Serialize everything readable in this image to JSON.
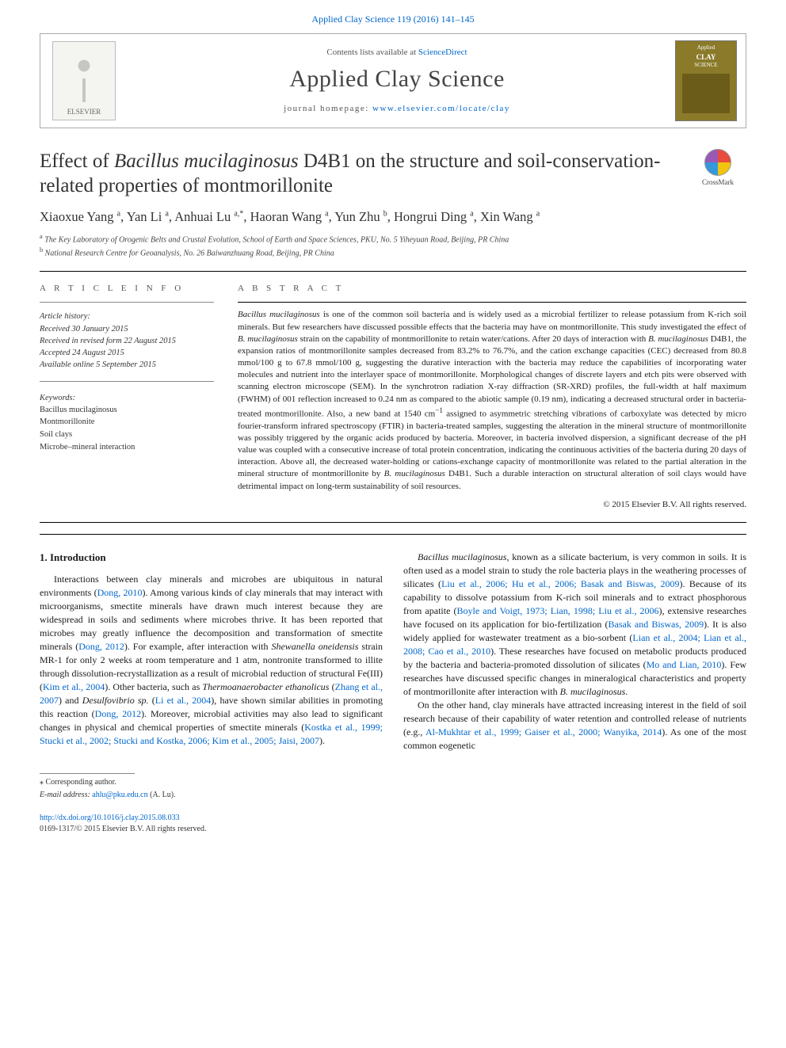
{
  "journal_ref": "Applied Clay Science 119 (2016) 141–145",
  "header": {
    "contents_prefix": "Contents lists available at ",
    "contents_link": "ScienceDirect",
    "journal_name": "Applied Clay Science",
    "homepage_prefix": "journal homepage: ",
    "homepage_url": "www.elsevier.com/locate/clay",
    "publisher_name": "ELSEVIER",
    "cover_label_1": "Applied",
    "cover_label_2": "CLAY",
    "cover_label_3": "SCIENCE"
  },
  "title": {
    "prefix": "Effect of ",
    "species": "Bacillus mucilaginosus",
    "suffix": " D4B1 on the structure and soil-conservation-related properties of montmorillonite"
  },
  "crossmark_label": "CrossMark",
  "authors": [
    {
      "name": "Xiaoxue Yang",
      "aff": "a"
    },
    {
      "name": "Yan Li",
      "aff": "a"
    },
    {
      "name": "Anhuai Lu",
      "aff": "a",
      "corr": true
    },
    {
      "name": "Haoran Wang",
      "aff": "a"
    },
    {
      "name": "Yun Zhu",
      "aff": "b"
    },
    {
      "name": "Hongrui Ding",
      "aff": "a"
    },
    {
      "name": "Xin Wang",
      "aff": "a"
    }
  ],
  "affiliations": {
    "a": "The Key Laboratory of Orogenic Belts and Crustal Evolution, School of Earth and Space Sciences, PKU, No. 5 Yiheyuan Road, Beijing, PR China",
    "b": "National Research Centre for Geoanalysis, No. 26 Baiwanzhuang Road, Beijing, PR China"
  },
  "info": {
    "heading": "A R T I C L E   I N F O",
    "history_label": "Article history:",
    "received": "Received 30 January 2015",
    "revised": "Received in revised form 22 August 2015",
    "accepted": "Accepted 24 August 2015",
    "online": "Available online 5 September 2015",
    "keywords_label": "Keywords:",
    "keywords": [
      "Bacillus mucilaginosus",
      "Montmorillonite",
      "Soil clays",
      "Microbe–mineral interaction"
    ]
  },
  "abstract": {
    "heading": "A B S T R A C T",
    "text_parts": [
      {
        "t": "Bacillus mucilaginosus",
        "i": true
      },
      {
        "t": " is one of the common soil bacteria and is widely used as a microbial fertilizer to release potassium from K-rich soil minerals. But few researchers have discussed possible effects that the bacteria may have on montmorillonite. This study investigated the effect of "
      },
      {
        "t": "B. mucilaginosus",
        "i": true
      },
      {
        "t": " strain on the capability of montmorillonite to retain water/cations. After 20 days of interaction with "
      },
      {
        "t": "B. mucilaginosus",
        "i": true
      },
      {
        "t": " D4B1, the expansion ratios of montmorillonite samples decreased from 83.2% to 76.7%, and the cation exchange capacities (CEC) decreased from 80.8 mmol/100 g to 67.8 mmol/100 g, suggesting the durative interaction with the bacteria may reduce the capabilities of incorporating water molecules and nutrient into the interlayer space of montmorillonite. Morphological changes of discrete layers and etch pits were observed with scanning electron microscope (SEM). In the synchrotron radiation X-ray diffraction (SR-XRD) profiles, the full-width at half maximum (FWHM) of 001 reflection increased to 0.24 nm as compared to the abiotic sample (0.19 nm), indicating a decreased structural order in bacteria-treated montmorillonite. Also, a new band at 1540 cm"
      },
      {
        "t": "−1",
        "sup": true
      },
      {
        "t": " assigned to asymmetric stretching vibrations of carboxylate was detected by micro fourier-transform infrared spectroscopy (FTIR) in bacteria-treated samples, suggesting the alteration in the mineral structure of montmorillonite was possibly triggered by the organic acids produced by bacteria. Moreover, in bacteria involved dispersion, a significant decrease of the pH value was coupled with a consecutive increase of total protein concentration, indicating the continuous activities of the bacteria during 20 days of interaction. Above all, the decreased water-holding or cations-exchange capacity of montmorillonite was related to the partial alteration in the mineral structure of montmorillonite by "
      },
      {
        "t": "B. mucilaginosus",
        "i": true
      },
      {
        "t": " D4B1. Such a durable interaction on structural alteration of soil clays would have detrimental impact on long-term sustainability of soil resources."
      }
    ],
    "copyright": "© 2015 Elsevier B.V. All rights reserved."
  },
  "section1": {
    "heading": "1. Introduction",
    "p1_parts": [
      {
        "t": "Interactions between clay minerals and microbes are ubiquitous in natural environments ("
      },
      {
        "t": "Dong, 2010",
        "c": true
      },
      {
        "t": "). Among various kinds of clay minerals that may interact with microorganisms, smectite minerals have drawn much interest because they are widespread in soils and sediments where microbes thrive. It has been reported that microbes may greatly influence the decomposition and transformation of smectite minerals ("
      },
      {
        "t": "Dong, 2012",
        "c": true
      },
      {
        "t": "). For example, after interaction with "
      },
      {
        "t": "Shewanella oneidensis",
        "i": true
      },
      {
        "t": " strain MR-1 for only 2 weeks at room temperature and 1 atm, nontronite transformed to illite through dissolution-recrystallization as a result of microbial reduction of structural Fe(III) ("
      },
      {
        "t": "Kim et al., 2004",
        "c": true
      },
      {
        "t": "). Other bacteria, such as "
      },
      {
        "t": "Thermoanaerobacter ethanolicus",
        "i": true
      },
      {
        "t": " ("
      },
      {
        "t": "Zhang et al., 2007",
        "c": true
      },
      {
        "t": ") and "
      },
      {
        "t": "Desulfovibrio sp.",
        "i": true
      },
      {
        "t": " ("
      },
      {
        "t": "Li et al., 2004",
        "c": true
      },
      {
        "t": "), have shown similar abilities in promoting this reaction ("
      },
      {
        "t": "Dong, 2012",
        "c": true
      },
      {
        "t": "). Moreover, microbial activities may also lead to significant changes in physical and chemical properties of smectite minerals ("
      },
      {
        "t": "Kostka et al., 1999; Stucki et al., 2002; Stucki and Kostka, 2006; Kim et al., 2005; Jaisi, 2007",
        "c": true
      },
      {
        "t": ")."
      }
    ],
    "p2_parts": [
      {
        "t": "Bacillus mucilaginosus",
        "i": true
      },
      {
        "t": ", known as a silicate bacterium, is very common in soils. It is often used as a model strain to study the role bacteria plays in the weathering processes of silicates ("
      },
      {
        "t": "Liu et al., 2006; Hu et al., 2006; Basak and Biswas, 2009",
        "c": true
      },
      {
        "t": "). Because of its capability to dissolve potassium from K-rich soil minerals and to extract phosphorous from apatite ("
      },
      {
        "t": "Boyle and Voigt, 1973; Lian, 1998; Liu et al., 2006",
        "c": true
      },
      {
        "t": "), extensive researches have focused on its application for bio-fertilization ("
      },
      {
        "t": "Basak and Biswas, 2009",
        "c": true
      },
      {
        "t": "). It is also widely applied for wastewater treatment as a bio-sorbent ("
      },
      {
        "t": "Lian et al., 2004; Lian et al., 2008; Cao et al., 2010",
        "c": true
      },
      {
        "t": "). These researches have focused on metabolic products produced by the bacteria and bacteria-promoted dissolution of silicates ("
      },
      {
        "t": "Mo and Lian, 2010",
        "c": true
      },
      {
        "t": "). Few researches have discussed specific changes in mineralogical characteristics and property of montmorillonite after interaction with "
      },
      {
        "t": "B. mucilaginosus",
        "i": true
      },
      {
        "t": "."
      }
    ],
    "p3_parts": [
      {
        "t": "On the other hand, clay minerals have attracted increasing interest in the field of soil research because of their capability of water retention and controlled release of nutrients (e.g., "
      },
      {
        "t": "Al-Mukhtar et al., 1999; Gaiser et al., 2000; Wanyika, 2014",
        "c": true
      },
      {
        "t": "). As one of the most common eogenetic"
      }
    ]
  },
  "footer": {
    "corr_label": "⁎ Corresponding author.",
    "email_label": "E-mail address:",
    "email": "ahlu@pku.edu.cn",
    "email_name": "(A. Lu).",
    "doi": "http://dx.doi.org/10.1016/j.clay.2015.08.033",
    "issn_line": "0169-1317/© 2015 Elsevier B.V. All rights reserved."
  }
}
